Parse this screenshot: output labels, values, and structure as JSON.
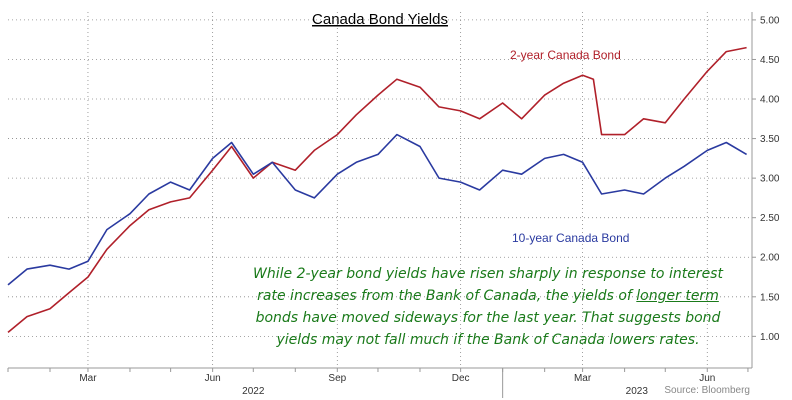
{
  "chart_data": {
    "type": "line",
    "title": "Canada Bond Yields",
    "ylim": [
      0.6,
      5.1
    ],
    "yticks": [
      "5.00",
      "4.50",
      "4.00",
      "3.50",
      "3.00",
      "2.50",
      "2.00",
      "1.50",
      "1.00"
    ],
    "month_labels": [
      "Mar",
      "Jun",
      "Sep",
      "Dec",
      "Mar",
      "Jun"
    ],
    "year_labels": [
      "2022",
      "2023"
    ],
    "grid": true,
    "series": [
      {
        "name": "2-year Canada Bond",
        "color": "#b0202a",
        "x": [
          "2022-01-01",
          "2022-01-15",
          "2022-02-01",
          "2022-02-15",
          "2022-03-01",
          "2022-03-15",
          "2022-04-01",
          "2022-04-15",
          "2022-05-01",
          "2022-05-15",
          "2022-06-01",
          "2022-06-15",
          "2022-07-01",
          "2022-07-15",
          "2022-08-01",
          "2022-08-15",
          "2022-09-01",
          "2022-09-15",
          "2022-10-01",
          "2022-10-15",
          "2022-11-01",
          "2022-11-15",
          "2022-12-01",
          "2022-12-15",
          "2023-01-01",
          "2023-01-15",
          "2023-02-01",
          "2023-02-15",
          "2023-03-01",
          "2023-03-09",
          "2023-03-15",
          "2023-04-01",
          "2023-04-15",
          "2023-05-01",
          "2023-05-15",
          "2023-06-01",
          "2023-06-15",
          "2023-06-30"
        ],
        "values": [
          1.05,
          1.25,
          1.35,
          1.55,
          1.75,
          2.1,
          2.4,
          2.6,
          2.7,
          2.75,
          3.1,
          3.4,
          3.0,
          3.2,
          3.1,
          3.35,
          3.55,
          3.8,
          4.05,
          4.25,
          4.15,
          3.9,
          3.85,
          3.75,
          3.95,
          3.75,
          4.05,
          4.2,
          4.3,
          4.25,
          3.55,
          3.55,
          3.75,
          3.7,
          4.0,
          4.35,
          4.6,
          4.65
        ]
      },
      {
        "name": "10-year Canada Bond",
        "color": "#2a3aa0",
        "x": [
          "2022-01-01",
          "2022-01-15",
          "2022-02-01",
          "2022-02-15",
          "2022-03-01",
          "2022-03-15",
          "2022-04-01",
          "2022-04-15",
          "2022-05-01",
          "2022-05-15",
          "2022-06-01",
          "2022-06-15",
          "2022-07-01",
          "2022-07-15",
          "2022-08-01",
          "2022-08-15",
          "2022-09-01",
          "2022-09-15",
          "2022-10-01",
          "2022-10-15",
          "2022-11-01",
          "2022-11-15",
          "2022-12-01",
          "2022-12-15",
          "2023-01-01",
          "2023-01-15",
          "2023-02-01",
          "2023-02-15",
          "2023-03-01",
          "2023-03-15",
          "2023-04-01",
          "2023-04-15",
          "2023-05-01",
          "2023-05-15",
          "2023-06-01",
          "2023-06-15",
          "2023-06-30"
        ],
        "values": [
          1.65,
          1.85,
          1.9,
          1.85,
          1.95,
          2.35,
          2.55,
          2.8,
          2.95,
          2.85,
          3.25,
          3.45,
          3.05,
          3.2,
          2.85,
          2.75,
          3.05,
          3.2,
          3.3,
          3.55,
          3.4,
          3.0,
          2.95,
          2.85,
          3.1,
          3.05,
          3.25,
          3.3,
          3.2,
          2.8,
          2.85,
          2.8,
          3.0,
          3.15,
          3.35,
          3.45,
          3.3
        ]
      }
    ],
    "source": "Source: Bloomberg"
  },
  "annotation": {
    "text_before": "While 2-year bond yields have risen sharply in response to interest rate increases from the Bank of Canada, the yields of ",
    "text_underlined": "longer term",
    "text_after": " bonds have moved sideways for the last year. That suggests bond yields may not fall much if the Bank of Canada lowers rates."
  }
}
